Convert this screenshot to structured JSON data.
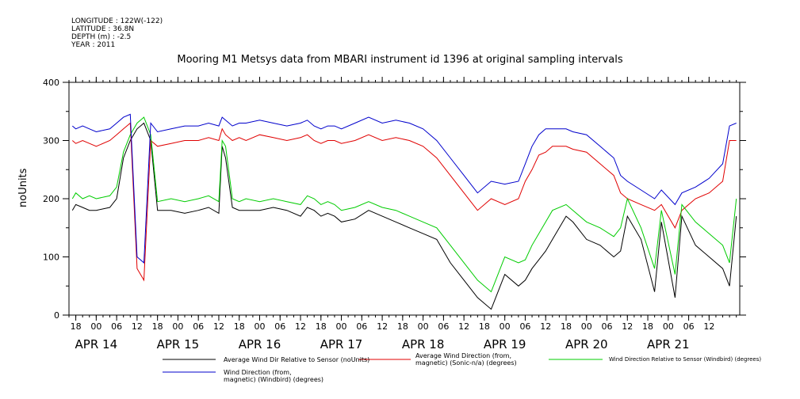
{
  "meta": {
    "longitude": "LONGITUDE : 122W(-122)",
    "latitude": "LATITUDE : 36.8N",
    "depth": "DEPTH (m) : -2.5",
    "year": "YEAR : 2011"
  },
  "chart_data": {
    "type": "line",
    "title": "Mooring M1 Metsys data from MBARI instrument id 1396 at original sampling intervals",
    "ylabel": "noUnits",
    "ylim": [
      0,
      400
    ],
    "yticks": [
      0,
      100,
      200,
      300,
      400
    ],
    "xlim_hours": [
      -8,
      189
    ],
    "hour_ticks": [
      "18",
      "00",
      "06",
      "12",
      "18",
      "00",
      "06",
      "12",
      "18",
      "00",
      "06",
      "12",
      "18",
      "00",
      "06",
      "12",
      "18",
      "00",
      "06",
      "12",
      "18",
      "00",
      "06",
      "12",
      "18",
      "00",
      "06",
      "12",
      "18",
      "00",
      "06",
      "12"
    ],
    "day_labels": [
      "APR 14",
      "APR 15",
      "APR 16",
      "APR 17",
      "APR 18",
      "APR 19",
      "APR 20",
      "APR 21"
    ],
    "x_hours": [
      -7,
      -6,
      -4,
      -2,
      0,
      4,
      6,
      8,
      10,
      12,
      14,
      16,
      18,
      22,
      26,
      30,
      33,
      36,
      37,
      38,
      40,
      42,
      44,
      48,
      52,
      56,
      60,
      62,
      64,
      66,
      68,
      70,
      72,
      76,
      80,
      84,
      88,
      92,
      96,
      100,
      104,
      108,
      112,
      116,
      120,
      124,
      126,
      128,
      130,
      132,
      134,
      138,
      140,
      144,
      148,
      152,
      154,
      156,
      160,
      164,
      166,
      170,
      172,
      176,
      180,
      184,
      186,
      188
    ],
    "series": [
      {
        "name": "Average Wind Dir Relative to Sensor (noUnits)",
        "color": "#000000",
        "values": [
          180,
          190,
          185,
          180,
          180,
          185,
          200,
          270,
          300,
          320,
          330,
          300,
          180,
          180,
          175,
          180,
          185,
          175,
          290,
          270,
          185,
          180,
          180,
          180,
          185,
          180,
          170,
          185,
          180,
          170,
          175,
          170,
          160,
          165,
          180,
          170,
          160,
          150,
          140,
          130,
          90,
          60,
          30,
          10,
          70,
          50,
          60,
          80,
          95,
          110,
          130,
          170,
          160,
          130,
          120,
          100,
          110,
          170,
          130,
          40,
          160,
          30,
          170,
          120,
          100,
          80,
          50,
          170
        ]
      },
      {
        "name": "Average Wind Direction (from, magnetic) (Sonic-n/a) (degrees)",
        "color": "#e00000",
        "values": [
          300,
          295,
          300,
          295,
          290,
          300,
          310,
          320,
          330,
          80,
          60,
          300,
          290,
          295,
          300,
          300,
          305,
          300,
          320,
          310,
          300,
          305,
          300,
          310,
          305,
          300,
          305,
          310,
          300,
          295,
          300,
          300,
          295,
          300,
          310,
          300,
          305,
          300,
          290,
          270,
          240,
          210,
          180,
          200,
          190,
          200,
          230,
          250,
          275,
          280,
          290,
          290,
          285,
          280,
          260,
          240,
          210,
          200,
          190,
          180,
          190,
          150,
          180,
          200,
          210,
          230,
          300,
          300
        ]
      },
      {
        "name": "Wind Direction Relative to Sensor (Windbird) (degrees)",
        "color": "#00cc00",
        "values": [
          200,
          210,
          200,
          205,
          200,
          205,
          220,
          280,
          310,
          330,
          340,
          310,
          195,
          200,
          195,
          200,
          205,
          195,
          300,
          290,
          200,
          195,
          200,
          195,
          200,
          195,
          190,
          205,
          200,
          190,
          195,
          190,
          180,
          185,
          195,
          185,
          180,
          170,
          160,
          150,
          120,
          90,
          60,
          40,
          100,
          90,
          95,
          120,
          140,
          160,
          180,
          190,
          180,
          160,
          150,
          135,
          150,
          200,
          150,
          80,
          180,
          70,
          190,
          160,
          140,
          120,
          90,
          200
        ]
      },
      {
        "name": "Wind Direction (from, magnetic) (Windbird) (degrees)",
        "color": "#0000cc",
        "values": [
          325,
          320,
          325,
          320,
          315,
          320,
          330,
          340,
          345,
          100,
          90,
          330,
          315,
          320,
          325,
          325,
          330,
          325,
          340,
          335,
          325,
          330,
          330,
          335,
          330,
          325,
          330,
          335,
          325,
          320,
          325,
          325,
          320,
          330,
          340,
          330,
          335,
          330,
          320,
          300,
          270,
          240,
          210,
          230,
          225,
          230,
          260,
          290,
          310,
          320,
          320,
          320,
          315,
          310,
          290,
          270,
          240,
          230,
          215,
          200,
          215,
          190,
          210,
          220,
          235,
          260,
          325,
          330
        ]
      }
    ]
  },
  "legend": {
    "black": "Average Wind Dir Relative to Sensor (noUnits)",
    "red_line1": "Average Wind Direction (from,",
    "red_line2": "magnetic) (Sonic-n/a) (degrees)",
    "green": "Wind Direction Relative to Sensor (Windbird) (degrees)",
    "blue_line1": "Wind Direction (from,",
    "blue_line2": "magnetic) (Windbird) (degrees)"
  }
}
